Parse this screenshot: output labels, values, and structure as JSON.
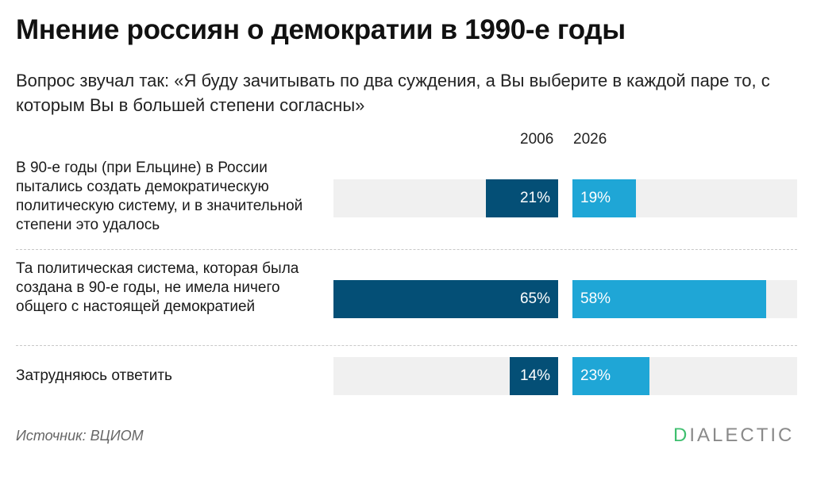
{
  "header": {
    "title": "Мнение россиян о демократии в 1990-е годы",
    "subtitle": "Вопрос звучал так: «Я буду зачитывать по два суждения, а Вы выберите в каждой паре то, с которым Вы в большей степени согласны»"
  },
  "colors": {
    "series_2006": "#044f76",
    "series_2026": "#1fa6d6",
    "track": "#f0f0f0",
    "logo_accent": "#3fbf6f"
  },
  "chart_data": {
    "type": "bar",
    "orientation": "horizontal-split",
    "title": "Мнение россиян о демократии в 1990-е годы",
    "categories": [
      "В 90-е годы (при Ельцине) в России пытались создать демократическую политическую систему, и в значительной степени это удалось",
      "Та политическая система, которая была создана в 90-е годы, не имела ничего общего с настоящей демократией",
      "Затрудняюсь ответить"
    ],
    "series": [
      {
        "name": "2006",
        "values": [
          21,
          65,
          14
        ],
        "labels": [
          "21%",
          "65%",
          "14%"
        ]
      },
      {
        "name": "2026",
        "values": [
          19,
          58,
          23
        ],
        "labels": [
          "19%",
          "58%",
          "23%"
        ]
      }
    ],
    "unit": "%",
    "xlim": [
      0,
      65
    ]
  },
  "footer": {
    "source": "Источник: ВЦИОМ",
    "logo_first": "D",
    "logo_rest": "IALECTIC"
  }
}
